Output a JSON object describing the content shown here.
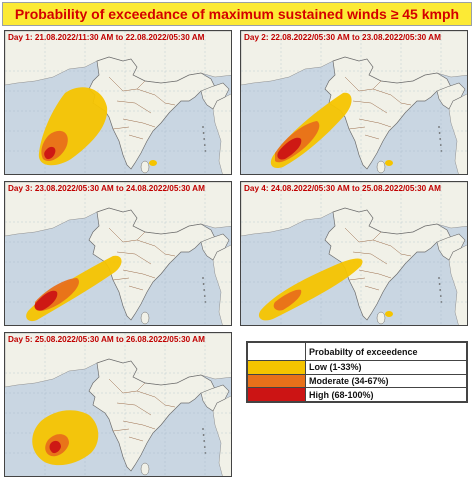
{
  "title": "Probability of exceedance of maximum sustained winds ≥ 45 kmph",
  "panels": [
    {
      "label": "Day 1: 21.08.2022/11:30 AM to 22.08.2022/05:30 AM",
      "variant": 1
    },
    {
      "label": "Day 2: 22.08.2022/05:30 AM to 23.08.2022/05:30 AM",
      "variant": 2
    },
    {
      "label": "Day 3: 23.08.2022/05:30 AM to 24.08.2022/05:30  AM",
      "variant": 3
    },
    {
      "label": "Day 4: 24.08.2022/05:30 AM to 25.08.2022/05:30  AM",
      "variant": 4
    },
    {
      "label": "Day 5: 25.08.2022/05:30 AM to 26.08.2022/05:30  AM",
      "variant": 5
    }
  ],
  "legend": {
    "header": "Probabilty of exceedence",
    "items": [
      {
        "label": "Low (1-33%)",
        "color": "#f5c400"
      },
      {
        "label": "Moderate (34-67%)",
        "color": "#e8701a"
      },
      {
        "label": "High (68-100%)",
        "color": "#cc1414"
      }
    ]
  },
  "colors": {
    "title_bg": "#fcea35",
    "title_text": "#d40000",
    "sea": "#c9d6e2",
    "land": "#f1f1e8"
  }
}
